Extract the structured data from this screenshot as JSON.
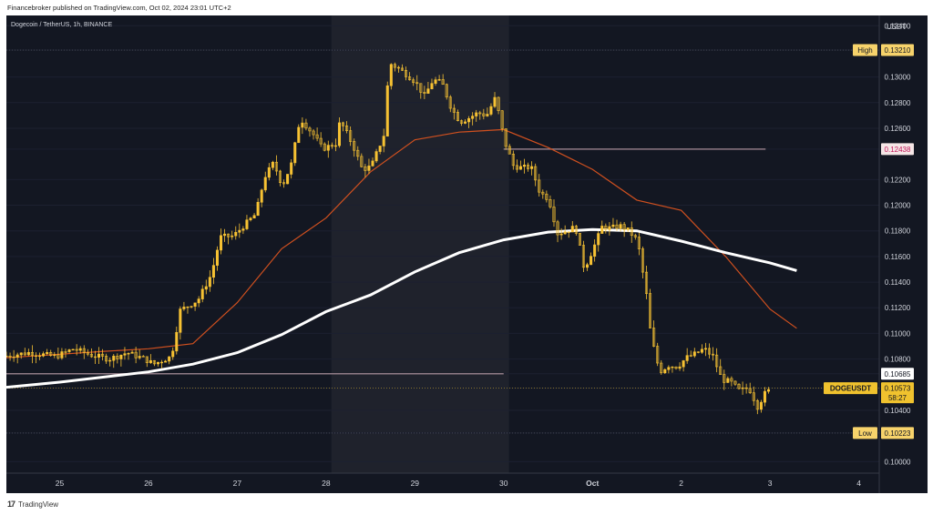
{
  "header": {
    "published_by": "Financebroker published on TradingView.com, Oct 02, 2024 23:01 UTC+2"
  },
  "footer": {
    "brand": "TradingView"
  },
  "colors": {
    "background": "#131722",
    "candle": "#f7c233",
    "ma_short": "#d0501f",
    "ma_long": "#ffffff",
    "axis_text": "#d1d4dc",
    "price_label_bg": "#f7d36b",
    "current_label_bg": "#f0c22e",
    "level_label_bg": "#f5e6e6",
    "level_label_text": "#c2185b",
    "weekend_shade": "#1f222c"
  },
  "chart_data": {
    "type": "candlestick",
    "title": "Dogecoin / TetherUS, 1h, BINANCE",
    "symbol": "DOGEUSDT",
    "currency": "USDT",
    "ylim": [
      0.0991,
      0.1348
    ],
    "y_ticks": [
      "0.13400",
      "0.13210",
      "0.13000",
      "0.12800",
      "0.12600",
      "0.12438",
      "0.12200",
      "0.12000",
      "0.11800",
      "0.11600",
      "0.11400",
      "0.11200",
      "0.11000",
      "0.10800",
      "0.10685",
      "0.10573",
      "0.10400",
      "0.10223",
      "0.10000"
    ],
    "x_ticks": [
      {
        "label": "25",
        "day": 0
      },
      {
        "label": "26",
        "day": 1
      },
      {
        "label": "27",
        "day": 2
      },
      {
        "label": "28",
        "day": 3
      },
      {
        "label": "29",
        "day": 4
      },
      {
        "label": "30",
        "day": 5
      },
      {
        "label": "Oct",
        "day": 6
      },
      {
        "label": "2",
        "day": 7
      },
      {
        "label": "3",
        "day": 8
      },
      {
        "label": "4",
        "day": 9
      }
    ],
    "x_range_days": [
      -0.6,
      9.23
    ],
    "weekend_shade_days": [
      3.06,
      5.06
    ],
    "high": {
      "label": "High",
      "value": 0.1321
    },
    "low": {
      "label": "Low",
      "value": 0.10223
    },
    "current": {
      "label": "DOGEUSDT",
      "value": 0.10573,
      "countdown": "58:27"
    },
    "levels": [
      {
        "name": "resistance",
        "value": 0.12438,
        "from_day": 5.0,
        "to_day": 7.95
      },
      {
        "name": "support",
        "value": 0.10685,
        "from_day": -0.6,
        "to_day": 5.0
      }
    ],
    "moving_averages": [
      {
        "name": "short",
        "points": [
          [
            -0.6,
            0.1081
          ],
          [
            0.5,
            0.1086
          ],
          [
            1.0,
            0.1088
          ],
          [
            1.5,
            0.1092
          ],
          [
            2.0,
            0.1124
          ],
          [
            2.5,
            0.1166
          ],
          [
            3.0,
            0.119
          ],
          [
            3.5,
            0.1226
          ],
          [
            4.0,
            0.1251
          ],
          [
            4.5,
            0.1257
          ],
          [
            5.0,
            0.1259
          ],
          [
            5.5,
            0.1245
          ],
          [
            6.0,
            0.1228
          ],
          [
            6.5,
            0.1204
          ],
          [
            7.0,
            0.1196
          ],
          [
            7.5,
            0.116
          ],
          [
            8.0,
            0.1119
          ],
          [
            8.3,
            0.1104
          ]
        ]
      },
      {
        "name": "long",
        "points": [
          [
            -0.6,
            0.1058
          ],
          [
            0.0,
            0.1062
          ],
          [
            1.0,
            0.107
          ],
          [
            1.5,
            0.1076
          ],
          [
            2.0,
            0.1085
          ],
          [
            2.5,
            0.1099
          ],
          [
            3.0,
            0.1117
          ],
          [
            3.5,
            0.113
          ],
          [
            4.0,
            0.1148
          ],
          [
            4.5,
            0.1163
          ],
          [
            5.0,
            0.1173
          ],
          [
            5.5,
            0.1179
          ],
          [
            6.0,
            0.1181
          ],
          [
            6.5,
            0.118
          ],
          [
            7.0,
            0.1172
          ],
          [
            7.5,
            0.1163
          ],
          [
            8.0,
            0.1155
          ],
          [
            8.3,
            0.1149
          ]
        ]
      }
    ],
    "price_path": [
      [
        -0.6,
        0.1082
      ],
      [
        -0.3,
        0.1085
      ],
      [
        0.0,
        0.1082
      ],
      [
        0.2,
        0.1088
      ],
      [
        0.4,
        0.1083
      ],
      [
        0.6,
        0.108
      ],
      [
        0.8,
        0.1085
      ],
      [
        1.0,
        0.108
      ],
      [
        1.1,
        0.1076
      ],
      [
        1.3,
        0.1082
      ],
      [
        1.4,
        0.1118
      ],
      [
        1.6,
        0.1126
      ],
      [
        1.75,
        0.1146
      ],
      [
        1.85,
        0.1175
      ],
      [
        2.0,
        0.1176
      ],
      [
        2.1,
        0.1183
      ],
      [
        2.25,
        0.1193
      ],
      [
        2.35,
        0.1222
      ],
      [
        2.45,
        0.1233
      ],
      [
        2.55,
        0.1215
      ],
      [
        2.65,
        0.1232
      ],
      [
        2.75,
        0.1268
      ],
      [
        2.9,
        0.1255
      ],
      [
        3.0,
        0.1244
      ],
      [
        3.15,
        0.1248
      ],
      [
        3.2,
        0.1266
      ],
      [
        3.35,
        0.1246
      ],
      [
        3.45,
        0.1228
      ],
      [
        3.55,
        0.123
      ],
      [
        3.7,
        0.1256
      ],
      [
        3.75,
        0.1311
      ],
      [
        3.85,
        0.1307
      ],
      [
        3.95,
        0.1302
      ],
      [
        4.05,
        0.1296
      ],
      [
        4.15,
        0.1285
      ],
      [
        4.25,
        0.1298
      ],
      [
        4.35,
        0.1295
      ],
      [
        4.45,
        0.1276
      ],
      [
        4.55,
        0.1265
      ],
      [
        4.65,
        0.1268
      ],
      [
        4.75,
        0.1272
      ],
      [
        4.85,
        0.127
      ],
      [
        4.95,
        0.1284
      ],
      [
        5.05,
        0.125
      ],
      [
        5.15,
        0.1231
      ],
      [
        5.25,
        0.1229
      ],
      [
        5.35,
        0.123
      ],
      [
        5.45,
        0.121
      ],
      [
        5.55,
        0.1205
      ],
      [
        5.65,
        0.1178
      ],
      [
        5.75,
        0.118
      ],
      [
        5.85,
        0.1183
      ],
      [
        5.95,
        0.115
      ],
      [
        6.05,
        0.1166
      ],
      [
        6.15,
        0.1183
      ],
      [
        6.25,
        0.1182
      ],
      [
        6.35,
        0.1184
      ],
      [
        6.45,
        0.118
      ],
      [
        6.55,
        0.1172
      ],
      [
        6.65,
        0.113
      ],
      [
        6.7,
        0.1098
      ],
      [
        6.8,
        0.107
      ],
      [
        6.9,
        0.1075
      ],
      [
        7.0,
        0.1074
      ],
      [
        7.1,
        0.1081
      ],
      [
        7.2,
        0.1084
      ],
      [
        7.3,
        0.1088
      ],
      [
        7.4,
        0.1082
      ],
      [
        7.5,
        0.1064
      ],
      [
        7.6,
        0.1062
      ],
      [
        7.7,
        0.1055
      ],
      [
        7.8,
        0.1058
      ],
      [
        7.9,
        0.1043
      ],
      [
        8.0,
        0.1055
      ]
    ]
  }
}
